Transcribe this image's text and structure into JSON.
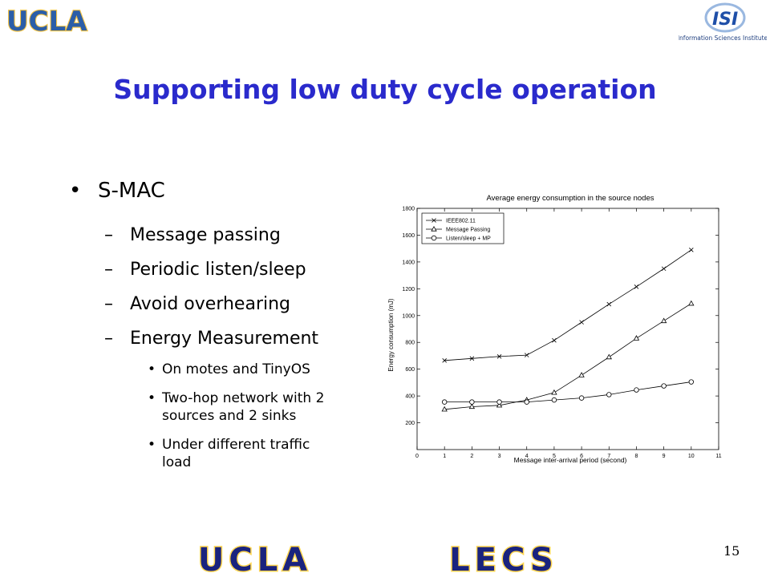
{
  "header": {
    "left_logo_text": "UCLA",
    "right_logo_text": "ISI",
    "right_logo_subtitle": "Information Sciences Institute"
  },
  "slide": {
    "title": "Supporting low duty cycle operation",
    "bullet1": "S-MAC",
    "sub_items": [
      "Message passing",
      "Periodic listen/sleep",
      "Avoid overhearing",
      "Energy Measurement"
    ],
    "subsub_items": [
      "On motes and TinyOS",
      "Two-hop network with 2 sources and 2 sinks",
      "Under different traffic load"
    ],
    "page_number": "15",
    "title_color": "#2a2acc"
  },
  "footer": {
    "left_logo_text": "UCLA",
    "right_logo_text": "LECS",
    "logo_fill": "#1a237e",
    "logo_outline": "#ffd54f"
  },
  "chart_data": {
    "type": "line",
    "title": "Average energy consumption in the source nodes",
    "xlabel": "Message inter-arrival period (second)",
    "ylabel": "Energy consumption (mJ)",
    "xlim": [
      0,
      11
    ],
    "ylim": [
      0,
      1800
    ],
    "x_ticks": [
      "0",
      "1",
      "2",
      "3",
      "4",
      "5",
      "6",
      "7",
      "8",
      "9",
      "10",
      "11"
    ],
    "y_ticks": [
      "200",
      "400",
      "600",
      "800",
      "1000",
      "1200",
      "1400",
      "1600",
      "1800"
    ],
    "legend_position": "top-left",
    "x": [
      1,
      2,
      3,
      4,
      5,
      6,
      7,
      8,
      9,
      10
    ],
    "series": [
      {
        "name": "IEEE802.11",
        "marker": "x",
        "values": [
          665,
          680,
          695,
          705,
          815,
          950,
          1085,
          1215,
          1350,
          1490
        ]
      },
      {
        "name": "Message Passing",
        "marker": "triangle",
        "values": [
          300,
          320,
          330,
          370,
          425,
          555,
          690,
          830,
          960,
          1090
        ]
      },
      {
        "name": "Listen/sleep + MP",
        "marker": "circle",
        "values": [
          355,
          355,
          355,
          355,
          370,
          385,
          410,
          445,
          475,
          505
        ]
      }
    ]
  }
}
